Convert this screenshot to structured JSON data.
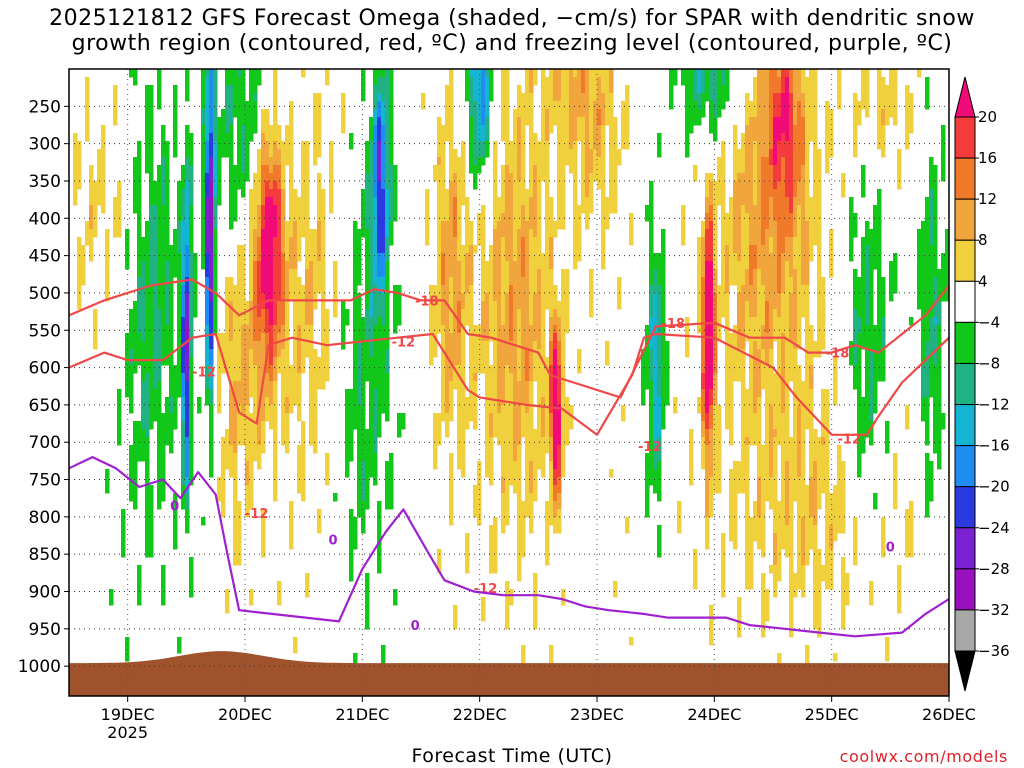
{
  "title_line1": "2025121812 GFS Forecast Omega (shaded, −cm/s) for SPAR with dendritic snow",
  "title_line2": "growth region (contoured, red, ºC) and freezing level (contoured, purple, ºC)",
  "xlabel": "Forecast Time (UTC)",
  "credit": "coolwx.com/models",
  "chart_data": {
    "type": "heatmap",
    "title": "2025121812 GFS Forecast Omega (shaded, −cm/s) for SPAR with dendritic snow growth region (contoured, red, ºC) and freezing level (contoured, purple, ºC)",
    "xlabel": "Forecast Time (UTC)",
    "ylabel": "",
    "y_axis": "pressure (reversed)",
    "y_ticks": [
      250,
      300,
      350,
      400,
      450,
      500,
      550,
      600,
      650,
      700,
      750,
      800,
      850,
      900,
      950,
      1000
    ],
    "x_ticks": [
      "19DEC",
      "20DEC",
      "21DEC",
      "22DEC",
      "23DEC",
      "24DEC",
      "25DEC",
      "26DEC"
    ],
    "x_sub": "2025",
    "xlim_days": [
      18.5,
      26
    ],
    "colorbar": {
      "labels": [
        "20",
        "16",
        "12",
        "8",
        "4",
        "−4",
        "−8",
        "−12",
        "−16",
        "−20",
        "−24",
        "−28",
        "−32",
        "−36"
      ],
      "colors": [
        "#f20a78",
        "#f53c3c",
        "#f07a2a",
        "#f0a63c",
        "#f0d03c",
        "#ffffff",
        "#11c81a",
        "#21b283",
        "#14b5d2",
        "#1e8cf0",
        "#2a3ae0",
        "#7a22d2",
        "#9a10be",
        "#a8a8a8",
        "#000000"
      ]
    },
    "contours": {
      "dendritic_neg18": {
        "label": "-18",
        "color": "#f04848",
        "points": [
          [
            18.5,
            530
          ],
          [
            18.8,
            510
          ],
          [
            19.2,
            490
          ],
          [
            19.55,
            482
          ],
          [
            19.75,
            500
          ],
          [
            19.95,
            530
          ],
          [
            20.2,
            510
          ],
          [
            20.6,
            510
          ],
          [
            20.9,
            510
          ],
          [
            21.1,
            495
          ],
          [
            21.3,
            500
          ],
          [
            21.5,
            510
          ],
          [
            21.7,
            510
          ],
          [
            21.9,
            555
          ],
          [
            22.1,
            560
          ],
          [
            22.5,
            580
          ],
          [
            22.6,
            610
          ],
          [
            22.8,
            620
          ],
          [
            23.2,
            640
          ],
          [
            23.5,
            545
          ],
          [
            24.0,
            540
          ],
          [
            24.3,
            560
          ],
          [
            24.6,
            560
          ],
          [
            24.8,
            580
          ],
          [
            25.0,
            580
          ],
          [
            25.2,
            570
          ],
          [
            25.4,
            580
          ],
          [
            25.6,
            555
          ],
          [
            25.8,
            530
          ],
          [
            26.0,
            490
          ]
        ],
        "labels": [
          [
            21.55,
            510
          ],
          [
            23.65,
            540
          ],
          [
            25.05,
            580
          ]
        ]
      },
      "dendritic_neg12": {
        "label": "-12",
        "color": "#f04848",
        "points": [
          [
            18.5,
            600
          ],
          [
            18.8,
            580
          ],
          [
            19.0,
            590
          ],
          [
            19.3,
            590
          ],
          [
            19.55,
            560
          ],
          [
            19.75,
            555
          ],
          [
            19.95,
            660
          ],
          [
            20.1,
            675
          ],
          [
            20.2,
            570
          ],
          [
            20.4,
            560
          ],
          [
            20.7,
            570
          ],
          [
            21.0,
            565
          ],
          [
            21.3,
            560
          ],
          [
            21.6,
            555
          ],
          [
            21.9,
            630
          ],
          [
            22.0,
            640
          ],
          [
            22.4,
            650
          ],
          [
            22.7,
            655
          ],
          [
            23.0,
            690
          ],
          [
            23.3,
            610
          ],
          [
            23.4,
            560
          ],
          [
            23.5,
            555
          ],
          [
            24.0,
            560
          ],
          [
            24.5,
            600
          ],
          [
            24.7,
            640
          ],
          [
            25.0,
            690
          ],
          [
            25.3,
            690
          ],
          [
            25.4,
            665
          ],
          [
            25.6,
            620
          ],
          [
            26.0,
            560
          ]
        ],
        "labels": [
          [
            19.65,
            605
          ],
          [
            21.35,
            565
          ],
          [
            23.45,
            705
          ],
          [
            25.15,
            695
          ],
          [
            20.1,
            795
          ],
          [
            22.05,
            895
          ]
        ]
      },
      "freezing_0": {
        "label": "0",
        "color": "#a020d0",
        "points": [
          [
            18.5,
            735
          ],
          [
            18.7,
            720
          ],
          [
            18.9,
            735
          ],
          [
            19.1,
            760
          ],
          [
            19.3,
            750
          ],
          [
            19.45,
            775
          ],
          [
            19.6,
            740
          ],
          [
            19.75,
            770
          ],
          [
            19.85,
            850
          ],
          [
            19.95,
            925
          ],
          [
            20.8,
            940
          ],
          [
            21.0,
            870
          ],
          [
            21.2,
            820
          ],
          [
            21.35,
            790
          ],
          [
            21.55,
            845
          ],
          [
            21.7,
            885
          ],
          [
            21.95,
            900
          ],
          [
            22.2,
            905
          ],
          [
            22.5,
            905
          ],
          [
            22.7,
            910
          ],
          [
            22.9,
            920
          ],
          [
            23.1,
            925
          ],
          [
            23.4,
            930
          ],
          [
            23.6,
            935
          ],
          [
            24.1,
            935
          ],
          [
            24.3,
            945
          ],
          [
            24.6,
            950
          ],
          [
            24.9,
            955
          ],
          [
            25.2,
            960
          ],
          [
            25.6,
            955
          ],
          [
            25.8,
            930
          ],
          [
            26.0,
            910
          ]
        ],
        "labels": [
          [
            19.4,
            785
          ],
          [
            20.75,
            830
          ],
          [
            21.45,
            945
          ],
          [
            25.5,
            840
          ]
        ]
      }
    }
  }
}
